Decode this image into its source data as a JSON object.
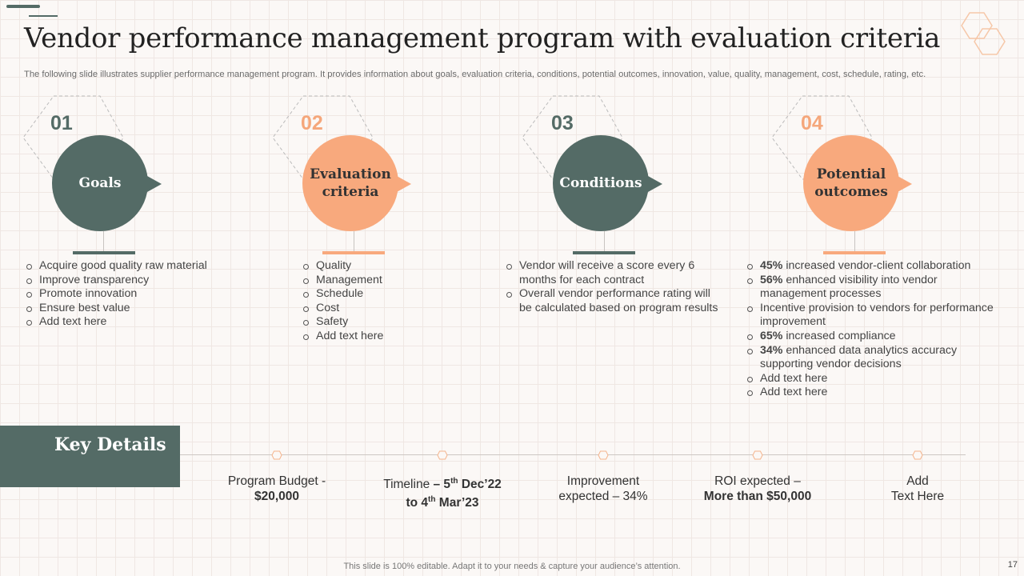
{
  "title": "Vendor performance management program with evaluation criteria",
  "subtitle": "The following slide illustrates supplier performance management program. It provides information about goals, evaluation criteria, conditions, potential outcomes, innovation, value, quality, management, cost, schedule, rating, etc.",
  "colors": {
    "dark": "#546b66",
    "peach": "#f8a97d",
    "background": "#fbf8f6"
  },
  "steps": [
    {
      "number": "01",
      "label": "Goals",
      "theme": "dark",
      "bullets": [
        "Acquire good quality raw material",
        "Improve transparency",
        "Promote innovation",
        "Ensure best value",
        "Add text here"
      ]
    },
    {
      "number": "02",
      "label": "Evaluation criteria",
      "theme": "peach",
      "bullets": [
        "Quality",
        "Management",
        "Schedule",
        "Cost",
        "Safety",
        "Add text here"
      ]
    },
    {
      "number": "03",
      "label": "Conditions",
      "theme": "dark",
      "bullets": [
        "Vendor will receive a score every 6 months for each contract",
        "Overall vendor performance rating will be calculated based on program results"
      ]
    },
    {
      "number": "04",
      "label": "Potential outcomes",
      "theme": "peach",
      "bullets": [
        {
          "bold": "45%",
          "text": " increased vendor-client collaboration"
        },
        {
          "bold": "56%",
          "text": " enhanced visibility into vendor management processes"
        },
        {
          "bold": "",
          "text": "Incentive provision to vendors for performance improvement"
        },
        {
          "bold": "65%",
          "text": " increased compliance"
        },
        {
          "bold": "34%",
          "text": " enhanced data analytics accuracy supporting vendor decisions"
        },
        {
          "bold": "",
          "text": "Add text here"
        },
        {
          "bold": "",
          "text": "Add text here"
        }
      ]
    }
  ],
  "key_details": {
    "title": "Key Details",
    "items": [
      {
        "line1": "Program Budget -",
        "line2": "$20,000"
      },
      {
        "line1_parts": [
          "Timeline ",
          "– 5",
          "th",
          " Dec’22"
        ],
        "line2_parts": [
          "to 4",
          "th",
          " Mar’23"
        ]
      },
      {
        "line1": "Improvement",
        "line2": "expected – 34%"
      },
      {
        "line1": "ROI expected –",
        "line2": "More than $50,000"
      },
      {
        "line1": "Add",
        "line2": "Text Here"
      }
    ]
  },
  "footer": "This slide is 100% editable. Adapt it to your needs & capture your audience’s attention.",
  "page_number": "17"
}
